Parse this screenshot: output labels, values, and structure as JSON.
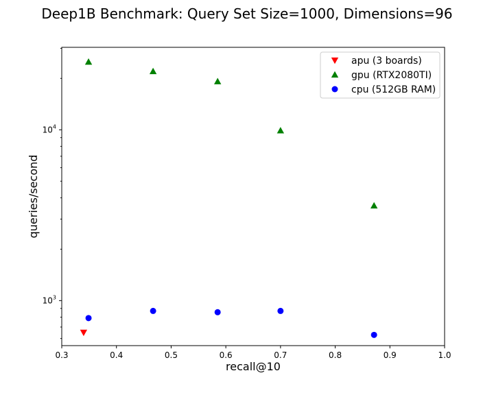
{
  "chart_data": {
    "type": "scatter",
    "title": "Deep1B Benchmark: Query Set Size=1000, Dimensions=96",
    "xlabel": "recall@10",
    "ylabel": "queries/second",
    "xlim": [
      0.3,
      1.0
    ],
    "ylim": [
      545,
      30400
    ],
    "yscale": "log",
    "grid": false,
    "legend_position": "upper-right",
    "xticks": [
      0.3,
      0.4,
      0.5,
      0.6,
      0.7,
      0.8,
      0.9,
      1.0
    ],
    "xtick_labels": [
      "0.3",
      "0.4",
      "0.5",
      "0.6",
      "0.7",
      "0.8",
      "0.9",
      "1.0"
    ],
    "yticks_major": [
      1000,
      10000
    ],
    "ytick_major_labels": [
      {
        "base": "10",
        "exp": "3"
      },
      {
        "base": "10",
        "exp": "4"
      }
    ],
    "series": [
      {
        "name": "apu (3 boards)",
        "marker": "triangle-down",
        "color": "#ff0000",
        "points": [
          {
            "x": 0.34,
            "y": 650
          }
        ]
      },
      {
        "name": "gpu (RTX2080TI)",
        "marker": "triangle-up",
        "color": "#008000",
        "points": [
          {
            "x": 0.349,
            "y": 25000
          },
          {
            "x": 0.467,
            "y": 22000
          },
          {
            "x": 0.585,
            "y": 19200
          },
          {
            "x": 0.7,
            "y": 9900
          },
          {
            "x": 0.871,
            "y": 3600
          }
        ]
      },
      {
        "name": "cpu (512GB RAM)",
        "marker": "circle",
        "color": "#0000ff",
        "points": [
          {
            "x": 0.349,
            "y": 790
          },
          {
            "x": 0.467,
            "y": 870
          },
          {
            "x": 0.585,
            "y": 855
          },
          {
            "x": 0.7,
            "y": 870
          },
          {
            "x": 0.871,
            "y": 630
          }
        ]
      }
    ]
  }
}
